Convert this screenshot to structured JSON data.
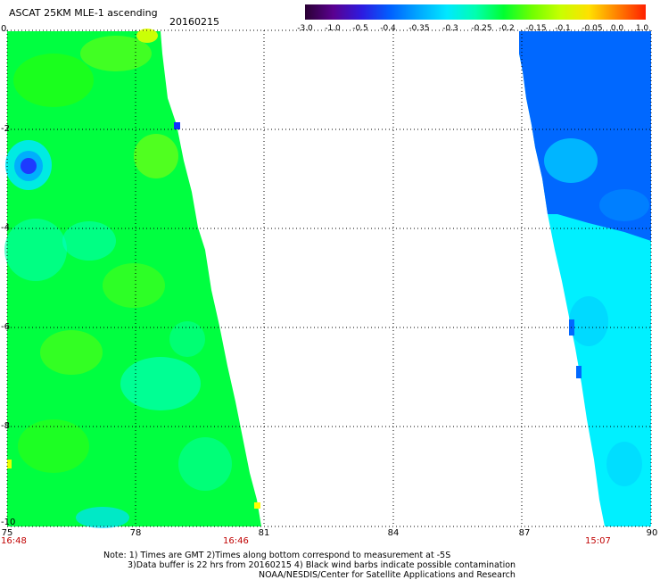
{
  "header": {
    "title": "ASCAT 25KM MLE-1 ascending",
    "date": "20160215"
  },
  "colorbar": {
    "labels": [
      "-3.0",
      "-1.0",
      "-0.5",
      "-0.4",
      "-0.35",
      "-0.3",
      "-0.25",
      "-0.2",
      "-0.15",
      "-0.1",
      "-0.05",
      "0.0",
      "1.0"
    ],
    "colors": [
      "#2a0033",
      "#5a0090",
      "#2d1be0",
      "#0060ff",
      "#00a8ff",
      "#00e8ff",
      "#00ffb0",
      "#00ff30",
      "#70ff00",
      "#c8ff00",
      "#ffe000",
      "#ff8000",
      "#ff2000"
    ]
  },
  "axes": {
    "x_ticks": [
      "75",
      "78",
      "81",
      "84",
      "87",
      "90"
    ],
    "y_ticks": [
      "0",
      "-2",
      "-4",
      "-6",
      "-8",
      "-10"
    ],
    "x_range": [
      75,
      90
    ],
    "y_range": [
      -10,
      0
    ]
  },
  "times": {
    "left_start": "16:48",
    "left_end": "16:46",
    "right": "15:07"
  },
  "notes": {
    "line1": "Note: 1) Times are GMT 2)Times along bottom correspond to measurement at -5S",
    "line2": "3)Data buffer is 22 hrs from 20160215 4) Black wind barbs indicate possible contamination",
    "line3": "NOAA/NESDIS/Center for Satellite Applications and Research"
  },
  "swaths": {
    "west": {
      "lon_range": [
        75,
        81
      ],
      "dominant_color": "#00ff30",
      "variant_colors": [
        "#50ff00",
        "#00ffa0",
        "#00e8ff"
      ]
    },
    "east": {
      "lon_range": [
        86.9,
        90
      ],
      "dominant_color": "#0060ff",
      "variant_colors": [
        "#00e8ff",
        "#00a8ff"
      ]
    }
  }
}
